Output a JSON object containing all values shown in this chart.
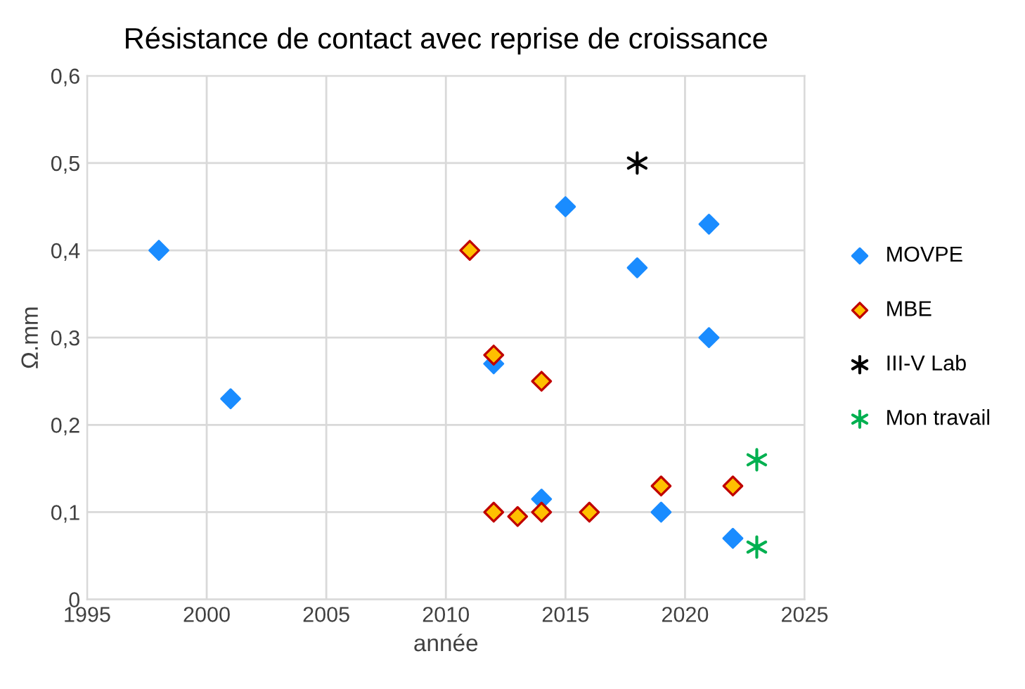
{
  "chart_data": {
    "type": "scatter",
    "title": "Résistance de contact avec reprise de croissance",
    "xlabel": "année",
    "ylabel": "Ω.mm",
    "series": [
      {
        "name": "MOVPE",
        "color": "#1a8cff",
        "marker": "diamond",
        "x": [
          1998,
          2001,
          2012,
          2014,
          2015,
          2018,
          2019,
          2021,
          2021,
          2022
        ],
        "values": [
          0.4,
          0.23,
          0.27,
          0.115,
          0.45,
          0.38,
          0.1,
          0.43,
          0.3,
          0.07
        ]
      },
      {
        "name": "MBE",
        "color": "#ffc000",
        "marker": "diamond",
        "x": [
          2011,
          2012,
          2012,
          2013,
          2014,
          2014,
          2016,
          2019,
          2022
        ],
        "values": [
          0.4,
          0.28,
          0.1,
          0.095,
          0.25,
          0.1,
          0.1,
          0.13,
          0.13
        ]
      },
      {
        "name": "III-V Lab",
        "color": "#000000",
        "marker": "cross",
        "x": [
          2018
        ],
        "values": [
          0.5
        ]
      },
      {
        "name": "Mon travail",
        "color": "#00b050",
        "marker": "cross",
        "x": [
          2023,
          2023
        ],
        "values": [
          0.16,
          0.06
        ]
      }
    ],
    "xlim": [
      1995,
      2025
    ],
    "xticks": [
      1995,
      2000,
      2005,
      2010,
      2015,
      2020,
      2025
    ],
    "ylim": [
      0,
      0.6
    ],
    "yticks": [
      0,
      {
        "value": 0.1,
        "label": "0,1"
      },
      {
        "value": 0.2,
        "label": "0,2"
      },
      {
        "value": 0.3,
        "label": "0,3"
      },
      {
        "value": 0.4,
        "label": "0,4"
      },
      {
        "value": 0.5,
        "label": "0,5"
      },
      {
        "value": 0.6,
        "label": "0,6"
      }
    ],
    "grid": true,
    "legend": "right"
  }
}
